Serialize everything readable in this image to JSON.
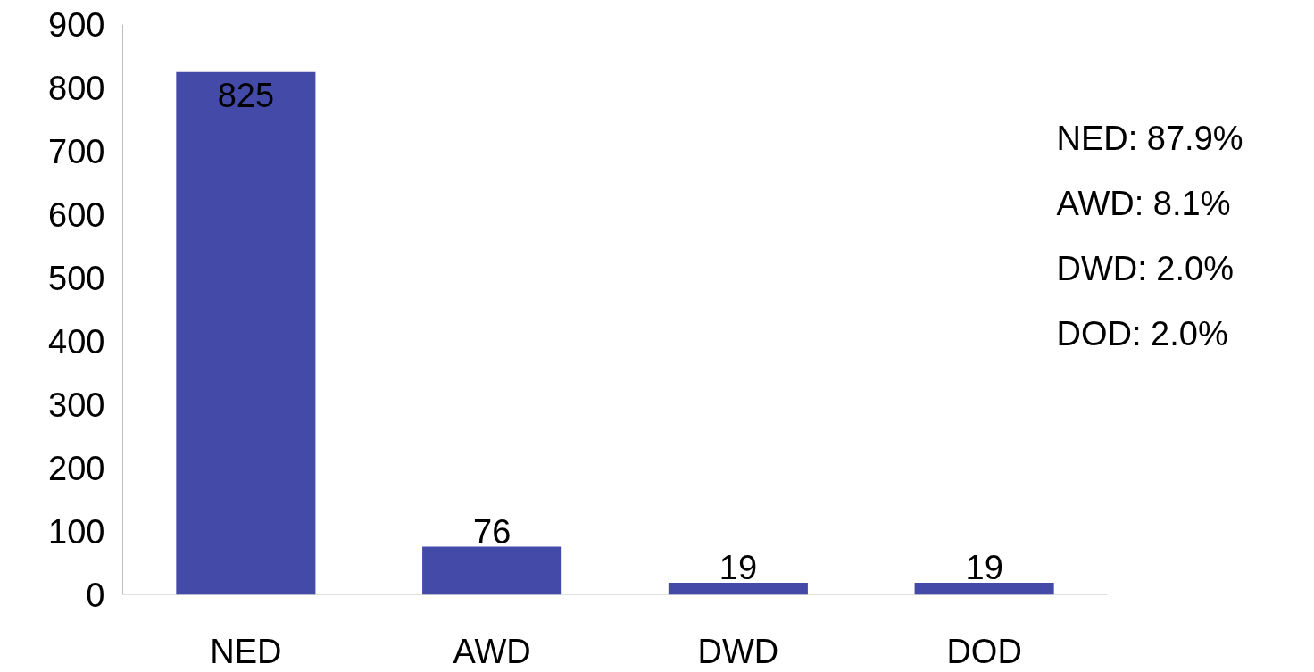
{
  "chart_data": {
    "type": "bar",
    "categories": [
      "NED",
      "AWD",
      "DWD",
      "DOD"
    ],
    "values": [
      825,
      76,
      19,
      19
    ],
    "color": "#434aa8",
    "ylim": [
      0,
      900
    ],
    "yticks": [
      0,
      100,
      200,
      300,
      400,
      500,
      600,
      700,
      800,
      900
    ],
    "grid": false,
    "data_labels": true,
    "annotations": [
      "NED:  87.9%",
      "AWD:   8.1%",
      "DWD:   2.0%",
      "DOD:    2.0%"
    ]
  }
}
